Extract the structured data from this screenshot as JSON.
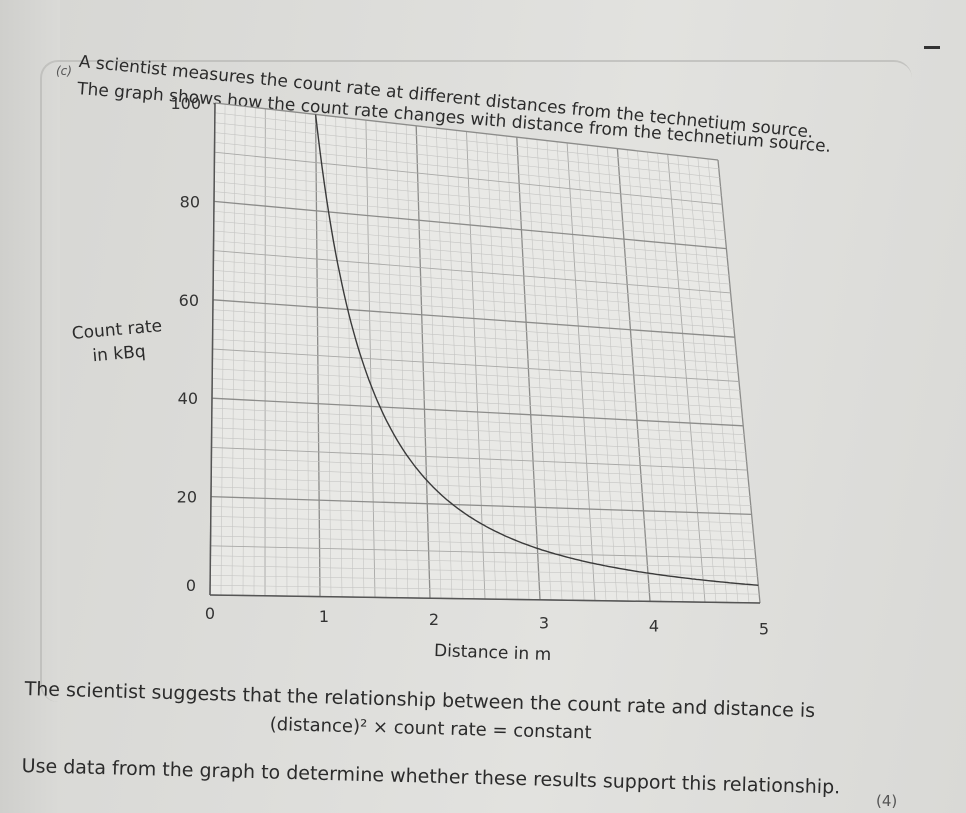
{
  "question": {
    "part_label": "(c)",
    "intro_line_1": "A scientist measures the count rate at different distances from the technetium source.",
    "intro_line_2": "The graph shows how the count rate changes with distance from the technetium source.",
    "statement": "The scientist suggests that the relationship between the count rate and distance is",
    "equation": "(distance)² × count rate = constant",
    "instruction": "Use data from the graph to determine whether these results support this relationship.",
    "marks": "(4)"
  },
  "chart_data": {
    "type": "line",
    "xlabel": "Distance in m",
    "ylabel": "Count rate in kBq",
    "ylabel_lines": [
      "Count rate",
      "in kBq"
    ],
    "xlim": [
      0,
      5
    ],
    "ylim": [
      0,
      100
    ],
    "x_ticks": [
      "0",
      "1",
      "2",
      "3",
      "4",
      "5"
    ],
    "y_ticks": [
      "0",
      "20",
      "40",
      "60",
      "80",
      "100"
    ],
    "grid": true,
    "series": [
      {
        "x": [
          1.0,
          1.25,
          1.5,
          1.75,
          2.0,
          2.5,
          3.0,
          3.5,
          4.0,
          4.5,
          5.0
        ],
        "y": [
          100,
          64,
          44.4,
          32.7,
          25,
          16,
          11.1,
          8.2,
          6.25,
          4.9,
          4
        ]
      }
    ]
  }
}
